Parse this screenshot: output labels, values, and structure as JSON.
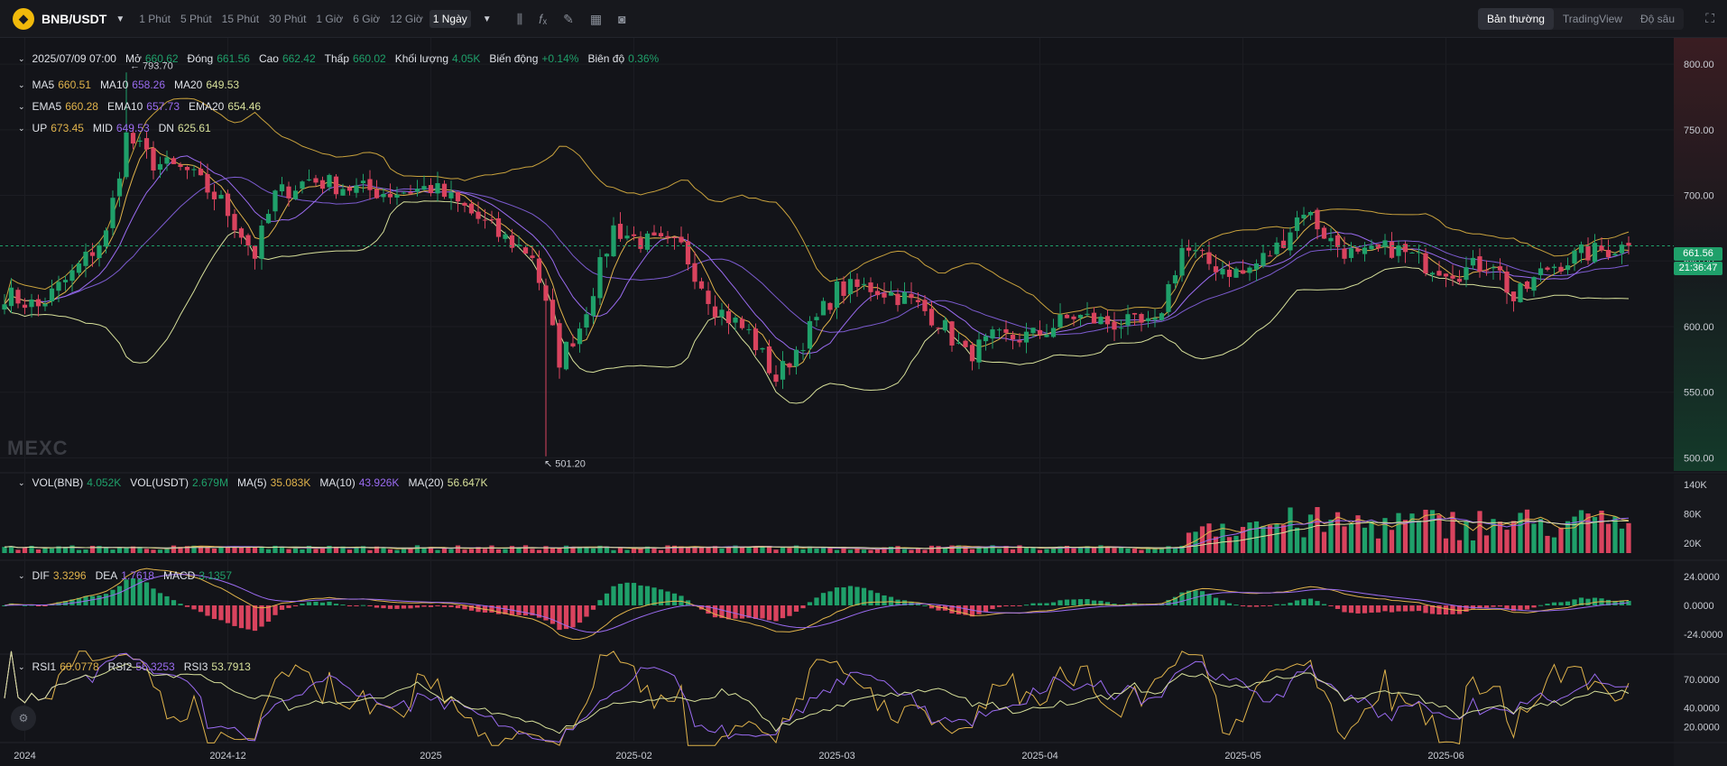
{
  "toolbar": {
    "pair": "BNB/USDT",
    "logo_glyph": "◆",
    "timeframes": [
      "1 Phút",
      "5 Phút",
      "15 Phút",
      "30 Phút",
      "1 Giờ",
      "6 Giờ",
      "12 Giờ"
    ],
    "active_timeframe": "1 Ngày",
    "icons": [
      "candle-type-icon",
      "indicator-icon",
      "draw-icon",
      "layout-icon",
      "camera-icon"
    ],
    "views": [
      "Bản thường",
      "TradingView",
      "Độ sâu"
    ],
    "active_view": "Bản thường"
  },
  "ohlc": {
    "date": "2025/07/09 07:00",
    "items": [
      {
        "k": "Mở",
        "v": "660.62",
        "color": "#1fa06a"
      },
      {
        "k": "Đóng",
        "v": "661.56",
        "color": "#1fa06a"
      },
      {
        "k": "Cao",
        "v": "662.42",
        "color": "#1fa06a"
      },
      {
        "k": "Thấp",
        "v": "660.02",
        "color": "#1fa06a"
      },
      {
        "k": "Khối lượng",
        "v": "4.05K",
        "color": "#1fa06a"
      },
      {
        "k": "Biến động",
        "v": "+0.14%",
        "color": "#1fa06a"
      },
      {
        "k": "Biên độ",
        "v": "0.36%",
        "color": "#1fa06a"
      }
    ]
  },
  "ma_legend": [
    {
      "k": "MA5",
      "v": "660.51",
      "color": "#e0b34b"
    },
    {
      "k": "MA10",
      "v": "658.26",
      "color": "#9a6bf0"
    },
    {
      "k": "MA20",
      "v": "649.53",
      "color": "#d7e09a"
    }
  ],
  "ema_legend": [
    {
      "k": "EMA5",
      "v": "660.28",
      "color": "#e0b34b"
    },
    {
      "k": "EMA10",
      "v": "657.73",
      "color": "#9a6bf0"
    },
    {
      "k": "EMA20",
      "v": "654.46",
      "color": "#d7e09a"
    }
  ],
  "boll_legend": [
    {
      "k": "UP",
      "v": "673.45",
      "color": "#e0b34b"
    },
    {
      "k": "MID",
      "v": "649.53",
      "color": "#9a6bf0"
    },
    {
      "k": "DN",
      "v": "625.61",
      "color": "#d7e09a"
    }
  ],
  "vol_legend": [
    {
      "k": "VOL(BNB)",
      "v": "4.052K",
      "color": "#1fa06a"
    },
    {
      "k": "VOL(USDT)",
      "v": "2.679M",
      "color": "#1fa06a"
    },
    {
      "k": "MA(5)",
      "v": "35.083K",
      "color": "#e0b34b"
    },
    {
      "k": "MA(10)",
      "v": "43.926K",
      "color": "#9a6bf0"
    },
    {
      "k": "MA(20)",
      "v": "56.647K",
      "color": "#d7e09a"
    }
  ],
  "macd_legend": [
    {
      "k": "DIF",
      "v": "3.3296",
      "color": "#e0b34b"
    },
    {
      "k": "DEA",
      "v": "1.7618",
      "color": "#9a6bf0"
    },
    {
      "k": "MACD",
      "v": "3.1357",
      "color": "#1fa06a"
    }
  ],
  "rsi_legend": [
    {
      "k": "RSI1",
      "v": "60.0778",
      "color": "#e0b34b"
    },
    {
      "k": "RSI2",
      "v": "56.3253",
      "color": "#9a6bf0"
    },
    {
      "k": "RSI3",
      "v": "53.7913",
      "color": "#d7e09a"
    }
  ],
  "watermark": "MEXC",
  "last_price": {
    "price": "661.56",
    "countdown": "21:36:47"
  },
  "chart_data": {
    "type": "candlestick",
    "interval": "1 Ngày",
    "price_axis": {
      "ticks": [
        800,
        750,
        700,
        650,
        600,
        550,
        500
      ],
      "tick_labels": [
        "800.00",
        "750.00",
        "700.00",
        "650.00",
        "600.00",
        "550.00",
        "500.00"
      ],
      "range": [
        490,
        820
      ]
    },
    "volume_axis": {
      "tick_labels": [
        "140K",
        "80K",
        "20K"
      ],
      "range": [
        0,
        160
      ]
    },
    "macd_axis": {
      "tick_labels": [
        "24.0000",
        "0.0000",
        "-24.0000"
      ],
      "range": [
        -36,
        36
      ]
    },
    "rsi_axis": {
      "tick_labels": [
        "70.0000",
        "40.0000",
        "20.0000"
      ],
      "range": [
        5,
        95
      ]
    },
    "x_axis": {
      "tick_labels": [
        "2024",
        "2024-12",
        "2025",
        "2025-02",
        "2025-03",
        "2025-04",
        "2025-05",
        "2025-06"
      ],
      "tick_index": [
        3,
        33,
        63,
        93,
        123,
        153,
        183,
        213
      ]
    },
    "annotations": {
      "high_label": "793.70",
      "high_index": 18,
      "low_label": "501.20",
      "low_index": 80
    },
    "anchors": [
      {
        "i": 0,
        "price": 625
      },
      {
        "i": 5,
        "price": 615
      },
      {
        "i": 10,
        "price": 640
      },
      {
        "i": 15,
        "price": 670
      },
      {
        "i": 18,
        "price": 745
      },
      {
        "i": 22,
        "price": 725
      },
      {
        "i": 27,
        "price": 718
      },
      {
        "i": 32,
        "price": 695
      },
      {
        "i": 37,
        "price": 655
      },
      {
        "i": 40,
        "price": 700
      },
      {
        "i": 45,
        "price": 712
      },
      {
        "i": 52,
        "price": 705
      },
      {
        "i": 57,
        "price": 702
      },
      {
        "i": 63,
        "price": 706
      },
      {
        "i": 68,
        "price": 690
      },
      {
        "i": 73,
        "price": 670
      },
      {
        "i": 78,
        "price": 655
      },
      {
        "i": 82,
        "price": 575
      },
      {
        "i": 85,
        "price": 600
      },
      {
        "i": 90,
        "price": 675
      },
      {
        "i": 94,
        "price": 665
      },
      {
        "i": 100,
        "price": 660
      },
      {
        "i": 105,
        "price": 615
      },
      {
        "i": 110,
        "price": 595
      },
      {
        "i": 114,
        "price": 560
      },
      {
        "i": 118,
        "price": 590
      },
      {
        "i": 123,
        "price": 628
      },
      {
        "i": 128,
        "price": 630
      },
      {
        "i": 133,
        "price": 622
      },
      {
        "i": 138,
        "price": 605
      },
      {
        "i": 142,
        "price": 578
      },
      {
        "i": 146,
        "price": 590
      },
      {
        "i": 152,
        "price": 593
      },
      {
        "i": 158,
        "price": 608
      },
      {
        "i": 163,
        "price": 603
      },
      {
        "i": 170,
        "price": 600
      },
      {
        "i": 174,
        "price": 660
      },
      {
        "i": 178,
        "price": 648
      },
      {
        "i": 183,
        "price": 640
      },
      {
        "i": 188,
        "price": 660
      },
      {
        "i": 192,
        "price": 690
      },
      {
        "i": 196,
        "price": 665
      },
      {
        "i": 200,
        "price": 652
      },
      {
        "i": 205,
        "price": 660
      },
      {
        "i": 210,
        "price": 648
      },
      {
        "i": 215,
        "price": 642
      },
      {
        "i": 220,
        "price": 650
      },
      {
        "i": 223,
        "price": 620
      },
      {
        "i": 228,
        "price": 645
      },
      {
        "i": 233,
        "price": 655
      },
      {
        "i": 238,
        "price": 660
      },
      {
        "i": 240,
        "price": 661.56
      }
    ],
    "volume_bursts": [
      {
        "from": 175,
        "to": 240,
        "level": 70
      }
    ],
    "colors": {
      "up": "#1fa06a",
      "down": "#d9435e",
      "ma5": "#e0b34b",
      "ma10": "#9a6bf0",
      "ma20": "#d7e09a",
      "boll": "#c9a23d"
    }
  }
}
